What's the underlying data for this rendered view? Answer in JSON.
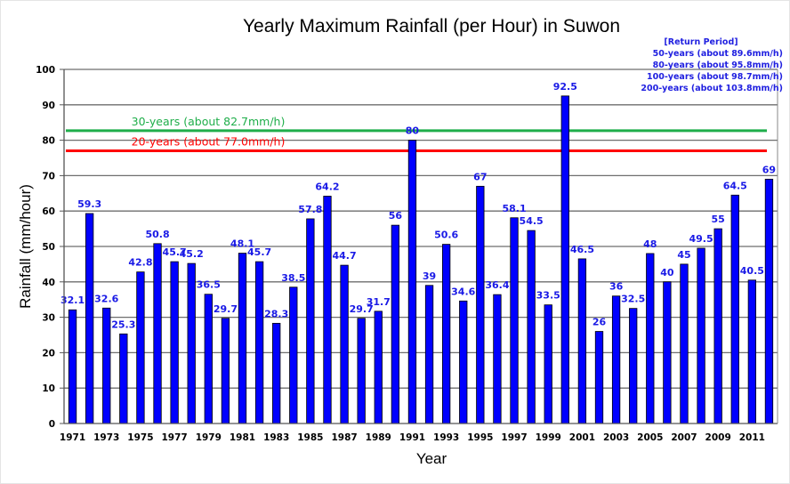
{
  "chart_data": {
    "type": "bar",
    "title": "Yearly Maximum  Rainfall (per Hour) in Suwon",
    "xlabel": "Year",
    "ylabel": "Rainfall (mm/hour)",
    "ylim": [
      0,
      100
    ],
    "yticks": [
      0,
      10,
      20,
      30,
      40,
      50,
      60,
      70,
      80,
      90,
      100
    ],
    "grid": true,
    "categories": [
      "1971",
      "1972",
      "1973",
      "1974",
      "1975",
      "1976",
      "1977",
      "1978",
      "1979",
      "1980",
      "1981",
      "1982",
      "1983",
      "1984",
      "1985",
      "1986",
      "1987",
      "1988",
      "1989",
      "1990",
      "1991",
      "1992",
      "1993",
      "1994",
      "1995",
      "1996",
      "1997",
      "1998",
      "1999",
      "2000",
      "2001",
      "2002",
      "2003",
      "2004",
      "2005",
      "2006",
      "2007",
      "2008",
      "2009",
      "2010",
      "2011",
      "2012"
    ],
    "xtick_labels": [
      "1971",
      "1973",
      "1975",
      "1977",
      "1979",
      "1981",
      "1983",
      "1985",
      "1987",
      "1989",
      "1991",
      "1993",
      "1995",
      "1997",
      "1999",
      "2001",
      "2003",
      "2005",
      "2007",
      "2009",
      "2011"
    ],
    "values": [
      32.1,
      59.3,
      32.6,
      25.3,
      42.8,
      50.8,
      45.7,
      45.2,
      36.5,
      29.7,
      48.1,
      45.7,
      28.3,
      38.5,
      57.8,
      64.2,
      44.7,
      29.7,
      31.7,
      56,
      80,
      39,
      50.6,
      34.6,
      67,
      36.4,
      58.1,
      54.5,
      33.5,
      92.5,
      46.5,
      26,
      36,
      32.5,
      48,
      40,
      45,
      49.5,
      55,
      64.5,
      40.5,
      69
    ],
    "data_labels": [
      "32.1",
      "59.3",
      "32.6",
      "25.3",
      "42.8",
      "50.8",
      "45.7",
      "45.2",
      "36.5",
      "29.7",
      "48.1",
      "45.7",
      "28.3",
      "38.5",
      "57.8",
      "64.2",
      "44.7",
      "29.7",
      "31.7",
      "56",
      "80",
      "39",
      "50.6",
      "34.6",
      "67",
      "36.4",
      "58.1",
      "54.5",
      "33.5",
      "92.5",
      "46.5",
      "26",
      "36",
      "32.5",
      "48",
      "40",
      "45",
      "49.5",
      "55",
      "64.5",
      "40.5",
      "69"
    ],
    "bar_color": "#0000ff",
    "reference_lines": [
      {
        "label": "30-years (about 82.7mm/h)",
        "value": 82.7,
        "color": "#1fae4a"
      },
      {
        "label": "20-years (about 77.0mm/h)",
        "value": 77.0,
        "color": "#ff0000"
      }
    ],
    "annotation": {
      "title": "[Return Period]",
      "lines": [
        "50-years (about  89.6mm/h)",
        "80-years (about  95.8mm/h)",
        "100-years (about  98.7mm/h)",
        "200-years (about 103.8mm/h)"
      ],
      "color": "#2020e0",
      "placement": "top-right"
    }
  }
}
